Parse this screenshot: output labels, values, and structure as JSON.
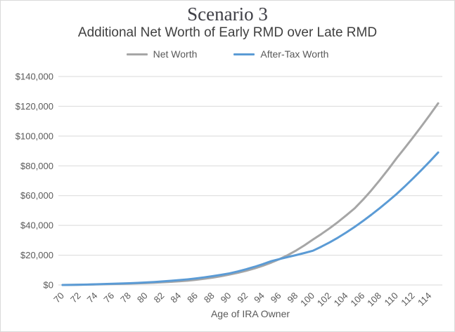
{
  "colors": {
    "net_worth_line": "#A6A6A6",
    "after_tax_line": "#5B9BD5",
    "gridline": "#D9D9D9",
    "axis_text": "#595959",
    "title_text": "#3F3F46",
    "chart_border": "#D9D9D9"
  },
  "chart_data": {
    "type": "line",
    "title": "Scenario 3",
    "subtitle": "Additional Net Worth of Early RMD over Late RMD",
    "xlabel": "Age of IRA Owner",
    "ylabel": "",
    "ylim": [
      0,
      140000
    ],
    "y_tick_interval": 20000,
    "y_tick_prefix": "$",
    "x_tick_step": 2,
    "grid": true,
    "legend_position": "top",
    "x": [
      70,
      71,
      72,
      73,
      74,
      75,
      76,
      77,
      78,
      79,
      80,
      81,
      82,
      83,
      84,
      85,
      86,
      87,
      88,
      89,
      90,
      91,
      92,
      93,
      94,
      95,
      96,
      97,
      98,
      99,
      100,
      101,
      102,
      103,
      104,
      105,
      106,
      107,
      108,
      109,
      110,
      111,
      112,
      113,
      114,
      115
    ],
    "series": [
      {
        "name": "Net Worth",
        "color": "#A6A6A6",
        "values": [
          0,
          60,
          140,
          240,
          360,
          500,
          620,
          760,
          920,
          1100,
          1300,
          1540,
          1820,
          2140,
          2500,
          2900,
          3480,
          4160,
          4960,
          5900,
          7000,
          8150,
          9500,
          11100,
          12900,
          15000,
          17400,
          20100,
          23200,
          26700,
          30500,
          34200,
          38100,
          42300,
          46800,
          51500,
          57300,
          63600,
          70400,
          77500,
          85000,
          92000,
          99200,
          106600,
          114200,
          122000
        ]
      },
      {
        "name": "After-Tax Worth",
        "color": "#5B9BD5",
        "values": [
          0,
          80,
          190,
          320,
          470,
          650,
          810,
          1000,
          1200,
          1440,
          1700,
          2020,
          2390,
          2810,
          3280,
          3800,
          4430,
          5150,
          5950,
          6840,
          7800,
          9100,
          10600,
          12200,
          14000,
          16000,
          17400,
          18800,
          20100,
          21500,
          23000,
          25700,
          28600,
          31800,
          35300,
          39000,
          43000,
          47200,
          51600,
          56200,
          61000,
          66200,
          71600,
          77200,
          83000,
          89000
        ]
      }
    ]
  }
}
